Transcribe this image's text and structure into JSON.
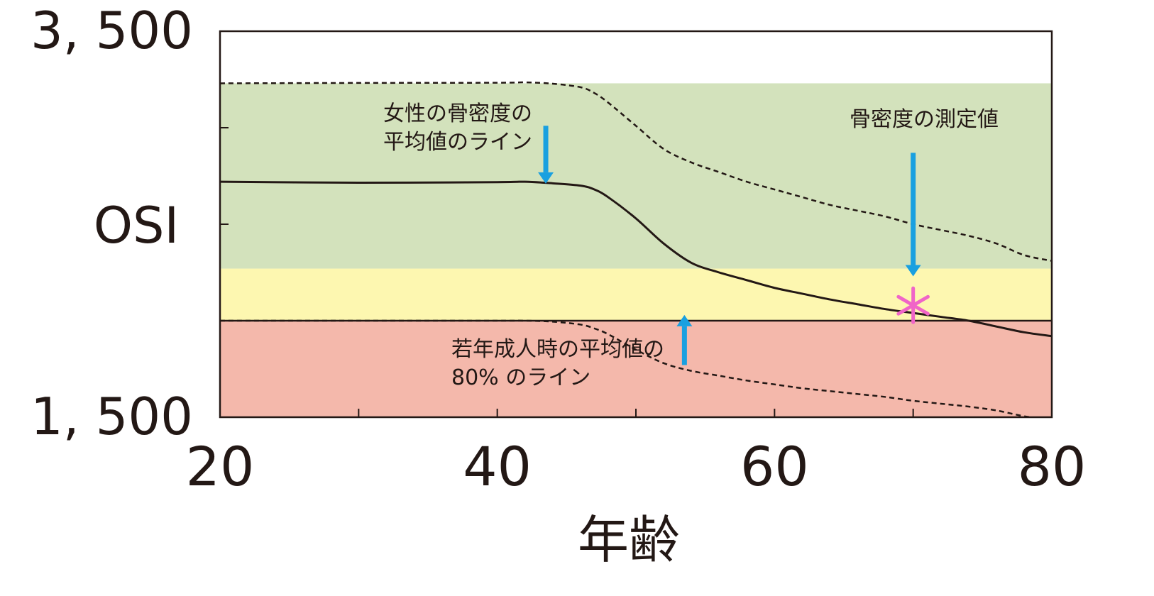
{
  "chart_data": {
    "type": "line",
    "xlabel": "年齢",
    "ylabel": "OSI",
    "xlim": [
      20,
      80
    ],
    "ylim": [
      1500,
      3500
    ],
    "x_ticks": [
      20,
      30,
      40,
      50,
      60,
      70,
      80
    ],
    "x_tick_labels": [
      "20",
      "40",
      "60",
      "80"
    ],
    "x_tick_label_values": [
      20,
      40,
      60,
      80
    ],
    "y_tick_labels": [
      "3, 500",
      "1, 500"
    ],
    "y_tick_label_values": [
      3500,
      1500
    ],
    "y_ticks": [
      3000,
      2500,
      2000
    ],
    "bands": [
      {
        "from": 2000,
        "to": 1500,
        "color": "#f4b8ab"
      },
      {
        "from": 2270,
        "to": 2000,
        "color": "#fdf7b0"
      },
      {
        "from": 3230,
        "to": 2270,
        "color": "#d3e2bc"
      }
    ],
    "series": [
      {
        "style": "solid",
        "x": [
          20,
          30,
          40,
          42,
          44,
          46,
          47,
          48,
          50,
          52,
          54,
          56,
          58,
          60,
          62,
          64,
          66,
          68,
          70,
          72,
          74,
          76,
          78,
          80
        ],
        "y": [
          2720,
          2715,
          2718,
          2720,
          2712,
          2700,
          2680,
          2640,
          2530,
          2400,
          2300,
          2250,
          2210,
          2170,
          2140,
          2110,
          2085,
          2060,
          2040,
          2020,
          2000,
          1970,
          1940,
          1920
        ]
      },
      {
        "style": "dashed",
        "x": [
          20,
          30,
          40,
          42,
          44,
          46,
          47,
          48,
          50,
          52,
          54,
          56,
          58,
          60,
          62,
          64,
          66,
          68,
          70,
          72,
          74,
          76,
          78,
          80
        ],
        "y": [
          3230,
          3232,
          3233,
          3235,
          3228,
          3210,
          3180,
          3130,
          3010,
          2890,
          2820,
          2770,
          2720,
          2680,
          2640,
          2600,
          2570,
          2540,
          2500,
          2470,
          2440,
          2400,
          2340,
          2310
        ]
      },
      {
        "style": "dashed",
        "x": [
          20,
          30,
          40,
          42,
          44,
          46,
          47,
          48,
          50,
          52,
          54,
          56,
          58,
          60,
          62,
          64,
          66,
          68,
          70,
          72,
          74,
          76,
          78,
          80
        ],
        "y": [
          2000,
          2000,
          2000,
          2000,
          1995,
          1980,
          1960,
          1930,
          1850,
          1780,
          1740,
          1715,
          1690,
          1670,
          1650,
          1635,
          1620,
          1605,
          1585,
          1570,
          1555,
          1535,
          1505,
          1485
        ]
      }
    ],
    "measured_point": {
      "x": 70,
      "y": 2080,
      "color": "#f065c8"
    },
    "annotations": [
      {
        "lines": [
          "女性の骨密度の",
          "平均値のライン"
        ],
        "arrow_x": 43.5,
        "arrow_from": 3010,
        "arrow_to": 2710,
        "arrow_color": "#19a0e0"
      },
      {
        "lines": [
          "骨密度の測定値"
        ],
        "arrow_x": 70,
        "arrow_from": 2870,
        "arrow_to": 2230,
        "arrow_color": "#19a0e0"
      },
      {
        "lines": [
          "若年成人時の平均値の",
          "80% のライン"
        ],
        "arrow_x": 53.5,
        "arrow_from": 1770,
        "arrow_to": 2030,
        "arrow_color": "#19a0e0"
      }
    ]
  }
}
